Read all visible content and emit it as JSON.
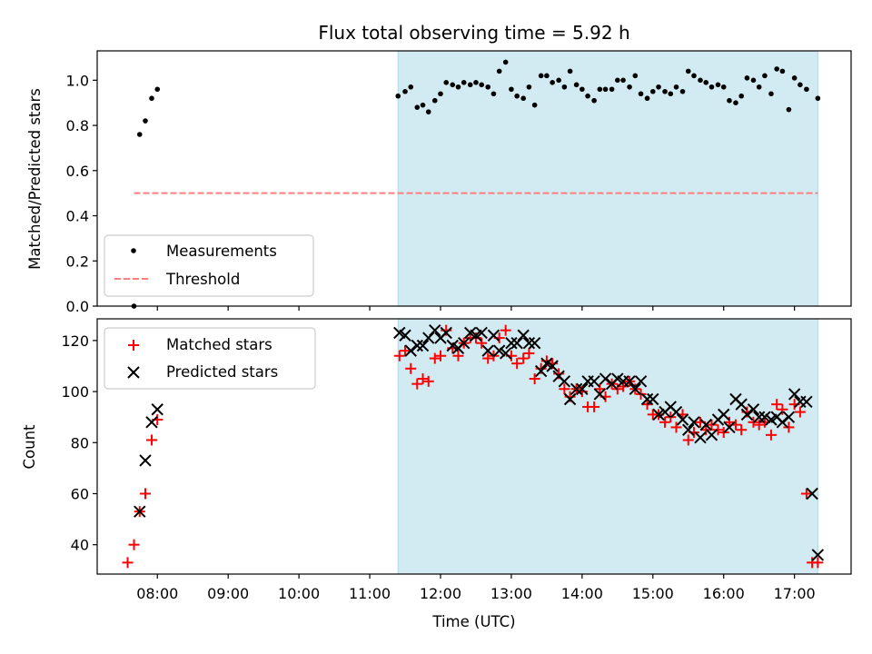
{
  "title": "Flux total observing time = 5.92 h",
  "colors": {
    "span": "#add8e6",
    "measurement": "#000000",
    "threshold": "#ff7f7f",
    "matched": "#ff0000",
    "predicted": "#000000"
  },
  "chart_data": [
    {
      "type": "scatter",
      "ylabel": "Matched/Predicted stars",
      "ylim": [
        0,
        1.13
      ],
      "yticks": [
        "0.0",
        "0.2",
        "0.4",
        "0.6",
        "0.8",
        "1.0"
      ],
      "xlim_hours": [
        7.15,
        17.8
      ],
      "shaded_span_hours": [
        11.4,
        17.33
      ],
      "legend": {
        "placement": "lower left",
        "measurements": "Measurements",
        "threshold": "Threshold"
      },
      "threshold": {
        "name": "Threshold",
        "y": 0.5,
        "x_hours": [
          7.67,
          17.33
        ]
      },
      "series": [
        {
          "name": "Measurements",
          "x_hours": [
            7.67,
            7.75,
            7.83,
            7.92,
            8.0,
            11.4,
            11.5,
            11.58,
            11.67,
            11.75,
            11.83,
            11.92,
            12.0,
            12.08,
            12.17,
            12.25,
            12.33,
            12.42,
            12.5,
            12.58,
            12.67,
            12.75,
            12.83,
            12.92,
            13.0,
            13.08,
            13.17,
            13.25,
            13.33,
            13.42,
            13.5,
            13.58,
            13.67,
            13.75,
            13.83,
            13.92,
            14.0,
            14.08,
            14.17,
            14.25,
            14.33,
            14.42,
            14.5,
            14.58,
            14.67,
            14.75,
            14.83,
            14.92,
            15.0,
            15.08,
            15.17,
            15.25,
            15.33,
            15.42,
            15.5,
            15.58,
            15.67,
            15.75,
            15.83,
            15.92,
            16.0,
            16.08,
            16.17,
            16.25,
            16.33,
            16.42,
            16.5,
            16.58,
            16.67,
            16.75,
            16.83,
            16.92,
            17.0,
            17.08,
            17.17,
            17.33
          ],
          "y": [
            0.0,
            0.76,
            0.82,
            0.92,
            0.96,
            0.93,
            0.95,
            0.97,
            0.88,
            0.89,
            0.86,
            0.91,
            0.94,
            0.99,
            0.98,
            0.97,
            0.99,
            0.98,
            0.99,
            0.98,
            0.97,
            0.94,
            1.04,
            1.08,
            0.96,
            0.93,
            0.92,
            0.97,
            0.89,
            1.02,
            1.02,
            0.99,
            1.0,
            0.97,
            1.04,
            0.98,
            0.96,
            0.93,
            0.91,
            0.96,
            0.96,
            0.96,
            1.0,
            1.0,
            0.97,
            1.02,
            0.94,
            0.92,
            0.95,
            0.97,
            0.95,
            0.94,
            0.97,
            0.95,
            1.04,
            1.02,
            1.0,
            0.99,
            0.97,
            0.98,
            0.97,
            0.91,
            0.9,
            0.93,
            1.01,
            1.0,
            0.97,
            1.02,
            0.94,
            1.05,
            1.04,
            0.87,
            1.01,
            0.98,
            0.96,
            0.92
          ]
        }
      ]
    },
    {
      "type": "scatter",
      "xlabel": "Time (UTC)",
      "ylabel": "Count",
      "ylim": [
        28.5,
        128.5
      ],
      "yticks": [
        "40",
        "60",
        "80",
        "100",
        "120"
      ],
      "xlim_hours": [
        7.15,
        17.8
      ],
      "xticks": [
        "08:00",
        "09:00",
        "10:00",
        "11:00",
        "12:00",
        "13:00",
        "14:00",
        "15:00",
        "16:00",
        "17:00"
      ],
      "shaded_span_hours": [
        11.4,
        17.33
      ],
      "legend": {
        "placement": "upper left",
        "matched": "Matched stars",
        "predicted": "Predicted stars"
      },
      "series": [
        {
          "name": "Matched stars",
          "marker": "plus",
          "x_hours": [
            7.58,
            7.67,
            7.75,
            7.83,
            7.92,
            8.0,
            11.42,
            11.5,
            11.58,
            11.67,
            11.75,
            11.83,
            11.92,
            12.0,
            12.08,
            12.17,
            12.25,
            12.33,
            12.42,
            12.5,
            12.58,
            12.67,
            12.75,
            12.83,
            12.92,
            13.0,
            13.08,
            13.17,
            13.25,
            13.33,
            13.42,
            13.5,
            13.58,
            13.67,
            13.75,
            13.83,
            13.92,
            14.0,
            14.08,
            14.17,
            14.25,
            14.33,
            14.42,
            14.5,
            14.58,
            14.67,
            14.75,
            14.83,
            14.92,
            15.0,
            15.08,
            15.17,
            15.25,
            15.33,
            15.42,
            15.5,
            15.58,
            15.67,
            15.75,
            15.83,
            15.92,
            16.0,
            16.08,
            16.17,
            16.25,
            16.33,
            16.42,
            16.5,
            16.58,
            16.67,
            16.75,
            16.83,
            16.92,
            17.0,
            17.08,
            17.17,
            17.25,
            17.33
          ],
          "y": [
            33,
            40,
            53,
            60,
            81,
            89,
            114,
            116,
            109,
            103,
            105,
            104,
            113,
            114,
            124,
            117,
            114,
            119,
            121,
            121,
            119,
            113,
            114,
            121,
            124,
            114,
            111,
            113,
            115,
            105,
            109,
            112,
            111,
            107,
            101,
            98,
            101,
            100,
            94,
            94,
            101,
            98,
            103,
            101,
            102,
            104,
            101,
            99,
            95,
            91,
            91,
            88,
            90,
            86,
            91,
            81,
            84,
            88,
            85,
            87,
            85,
            84,
            88,
            87,
            85,
            92,
            88,
            87,
            88,
            83,
            95,
            93,
            86,
            95,
            92,
            60,
            33,
            33
          ]
        },
        {
          "name": "Predicted stars",
          "marker": "x",
          "x_hours": [
            7.75,
            7.83,
            7.92,
            8.0,
            11.42,
            11.5,
            11.58,
            11.67,
            11.75,
            11.83,
            11.92,
            12.0,
            12.08,
            12.17,
            12.25,
            12.33,
            12.42,
            12.5,
            12.58,
            12.67,
            12.75,
            12.83,
            12.92,
            13.0,
            13.08,
            13.17,
            13.25,
            13.33,
            13.42,
            13.5,
            13.58,
            13.67,
            13.75,
            13.83,
            13.92,
            14.0,
            14.08,
            14.17,
            14.25,
            14.33,
            14.42,
            14.5,
            14.58,
            14.67,
            14.75,
            14.83,
            14.92,
            15.0,
            15.08,
            15.17,
            15.25,
            15.33,
            15.42,
            15.5,
            15.58,
            15.67,
            15.75,
            15.83,
            15.92,
            16.0,
            16.08,
            16.17,
            16.25,
            16.33,
            16.42,
            16.5,
            16.58,
            16.67,
            16.75,
            16.83,
            16.92,
            17.0,
            17.08,
            17.17,
            17.25,
            17.33
          ],
          "y": [
            53,
            73,
            88,
            93,
            123,
            122,
            116,
            118,
            118,
            121,
            124,
            121,
            123,
            118,
            117,
            119,
            123,
            122,
            123,
            116,
            122,
            116,
            115,
            119,
            119,
            122,
            119,
            119,
            108,
            111,
            110,
            106,
            104,
            97,
            101,
            101,
            104,
            104,
            99,
            105,
            103,
            105,
            104,
            104,
            101,
            104,
            97,
            97,
            91,
            92,
            94,
            92,
            89,
            85,
            88,
            82,
            87,
            83,
            89,
            91,
            86,
            97,
            95,
            91,
            93,
            90,
            90,
            89,
            90,
            88,
            90,
            99,
            96,
            96,
            60,
            36
          ]
        }
      ]
    }
  ]
}
